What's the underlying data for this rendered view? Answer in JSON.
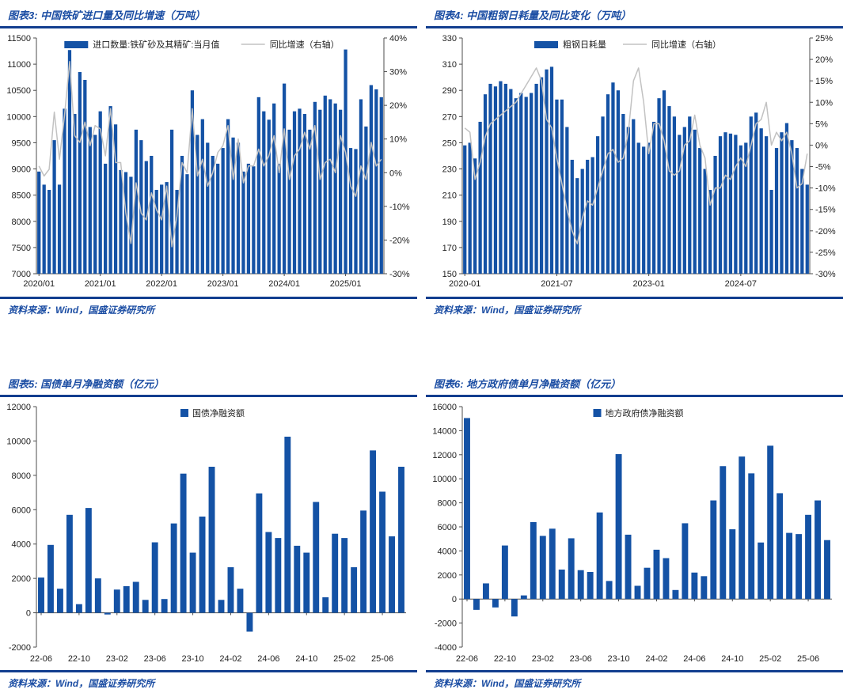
{
  "colors": {
    "bar_blue": "#1452A5",
    "accent_blue": "#1B4DA3",
    "rule_blue": "#123E8F",
    "trend_gray": "#C2C2C2"
  },
  "chart_data": [
    {
      "type": "bar",
      "title": "图表3: 中国铁矿进口量及同比增速（万吨）",
      "source": "资料来源：Wind，国盛证券研究所",
      "legend": [
        {
          "label": "进口数量:铁矿砂及其精矿:当月值",
          "type": "bar",
          "icon": "swatch"
        },
        {
          "label": "同比增速（右轴）",
          "type": "line",
          "icon": "line"
        }
      ],
      "baseline": "min",
      "y_left": {
        "range": [
          7000,
          11500
        ],
        "step": 500
      },
      "y_right": {
        "range": [
          -30,
          40
        ],
        "step": 10,
        "format": "percent"
      },
      "x_ticks": {
        "indices": [
          0,
          12,
          24,
          36,
          48,
          60
        ],
        "labels": [
          "2020/01",
          "2021/01",
          "2022/01",
          "2023/01",
          "2024/01",
          "2025/01"
        ]
      },
      "x_months": [
        "2020-01",
        "2020-02",
        "2020-03",
        "2020-04",
        "2020-05",
        "2020-06",
        "2020-07",
        "2020-08",
        "2020-09",
        "2020-10",
        "2020-11",
        "2020-12",
        "2021-01",
        "2021-02",
        "2021-03",
        "2021-04",
        "2021-05",
        "2021-06",
        "2021-07",
        "2021-08",
        "2021-09",
        "2021-10",
        "2021-11",
        "2021-12",
        "2022-01",
        "2022-02",
        "2022-03",
        "2022-04",
        "2022-05",
        "2022-06",
        "2022-07",
        "2022-08",
        "2022-09",
        "2022-10",
        "2022-11",
        "2022-12",
        "2023-01",
        "2023-02",
        "2023-03",
        "2023-04",
        "2023-05",
        "2023-06",
        "2023-07",
        "2023-08",
        "2023-09",
        "2023-10",
        "2023-11",
        "2023-12",
        "2024-01",
        "2024-02",
        "2024-03",
        "2024-04",
        "2024-05",
        "2024-06",
        "2024-07",
        "2024-08",
        "2024-09",
        "2024-10",
        "2024-11",
        "2024-12",
        "2025-01",
        "2025-02",
        "2025-03",
        "2025-04",
        "2025-05",
        "2025-06",
        "2025-07",
        "2025-08"
      ],
      "series": [
        {
          "name": "进口数量:铁矿砂及其精矿:当月值",
          "type": "bar",
          "axis": "left",
          "values": [
            8950,
            8700,
            8600,
            9550,
            8700,
            10150,
            11270,
            10050,
            10850,
            10700,
            9800,
            9650,
            10100,
            9100,
            10200,
            9850,
            8980,
            8940,
            8850,
            9750,
            9550,
            9150,
            9250,
            8600,
            8700,
            8750,
            9750,
            8600,
            9250,
            8900,
            10500,
            9650,
            9950,
            9500,
            9250,
            9100,
            9400,
            9950,
            9600,
            9500,
            8950,
            9100,
            9050,
            10370,
            10100,
            9940,
            10250,
            9100,
            10630,
            9750,
            10100,
            10150,
            10050,
            9750,
            10280,
            10130,
            10400,
            10330,
            10250,
            10130,
            11280,
            9400,
            9380,
            10330,
            9810,
            10600,
            10520,
            10370
          ]
        },
        {
          "name": "同比增速（右轴）",
          "type": "line",
          "axis": "right",
          "values": [
            2,
            -1,
            1,
            18,
            4,
            17,
            33,
            11,
            9,
            15,
            8,
            14,
            13,
            5,
            19,
            3,
            3,
            -12,
            -21,
            -3,
            -12,
            -14,
            -6,
            -11,
            -14,
            -4,
            -22,
            -13,
            3,
            0,
            19,
            -1,
            4,
            -4,
            0,
            6,
            8,
            14,
            -2,
            10,
            -3,
            2,
            2,
            7,
            2,
            5,
            11,
            0,
            13,
            -2,
            5,
            7,
            12,
            7,
            14,
            -2,
            3,
            4,
            0,
            11,
            6,
            -4,
            -7,
            2,
            -2,
            9,
            2,
            4
          ]
        }
      ]
    },
    {
      "type": "bar",
      "title": "图表4: 中国粗钢日耗量及同比变化（万吨）",
      "source": "资料来源：Wind，国盛证券研究所",
      "legend": [
        {
          "label": "粗钢日耗量",
          "type": "bar",
          "icon": "swatch"
        },
        {
          "label": "同比增速（右轴）",
          "type": "line",
          "icon": "line"
        }
      ],
      "baseline": "min",
      "y_left": {
        "range": [
          150,
          330
        ],
        "step": 20
      },
      "y_right": {
        "range": [
          -30,
          25
        ],
        "step": 5,
        "format": "percent"
      },
      "x_ticks": {
        "indices": [
          0,
          18,
          36,
          54
        ],
        "labels": [
          "2020-01",
          "2021-07",
          "2023-01",
          "2024-07"
        ]
      },
      "x_months": [
        "2020-01",
        "2020-02",
        "2020-03",
        "2020-04",
        "2020-05",
        "2020-06",
        "2020-07",
        "2020-08",
        "2020-09",
        "2020-10",
        "2020-11",
        "2020-12",
        "2021-01",
        "2021-02",
        "2021-03",
        "2021-04",
        "2021-05",
        "2021-06",
        "2021-07",
        "2021-08",
        "2021-09",
        "2021-10",
        "2021-11",
        "2021-12",
        "2022-01",
        "2022-02",
        "2022-03",
        "2022-04",
        "2022-05",
        "2022-06",
        "2022-07",
        "2022-08",
        "2022-09",
        "2022-10",
        "2022-11",
        "2022-12",
        "2023-01",
        "2023-02",
        "2023-03",
        "2023-04",
        "2023-05",
        "2023-06",
        "2023-07",
        "2023-08",
        "2023-09",
        "2023-10",
        "2023-11",
        "2023-12",
        "2024-01",
        "2024-02",
        "2024-03",
        "2024-04",
        "2024-05",
        "2024-06",
        "2024-07",
        "2024-08",
        "2024-09",
        "2024-10",
        "2024-11",
        "2024-12",
        "2025-01",
        "2025-02",
        "2025-03",
        "2025-04",
        "2025-05",
        "2025-06",
        "2025-07",
        "2025-08"
      ],
      "series": [
        {
          "name": "粗钢日耗量",
          "type": "bar",
          "axis": "left",
          "values": [
            248,
            250,
            238,
            266,
            287,
            295,
            293,
            297,
            295,
            291,
            284,
            288,
            285,
            288,
            295,
            300,
            306,
            308,
            283,
            283,
            262,
            237,
            223,
            230,
            237,
            239,
            255,
            270,
            287,
            296,
            290,
            272,
            262,
            268,
            250,
            247,
            250,
            266,
            284,
            290,
            278,
            270,
            256,
            262,
            270,
            260,
            246,
            230,
            214,
            240,
            255,
            258,
            257,
            256,
            248,
            250,
            270,
            273,
            261,
            255,
            214,
            246,
            258,
            265,
            252,
            246,
            230,
            218
          ]
        },
        {
          "name": "同比增速（右轴）",
          "type": "line",
          "axis": "right",
          "values": [
            4,
            3,
            -8,
            -4,
            2,
            5,
            6,
            7,
            8,
            9,
            10,
            12,
            14,
            16,
            18,
            15,
            6,
            4,
            -3,
            -9,
            -15,
            -20,
            -23,
            -17,
            -13,
            -14,
            -10,
            -6,
            -2,
            -1,
            -4,
            -3,
            3,
            15,
            18,
            10,
            -2,
            5,
            5,
            1,
            -6,
            -7,
            -6,
            0,
            1,
            7,
            0,
            -3,
            -14,
            -10,
            -10,
            -7,
            -8,
            -5,
            -3,
            -5,
            0,
            5,
            6,
            10,
            0,
            3,
            1,
            3,
            -2,
            -10,
            -9,
            -2
          ]
        }
      ]
    },
    {
      "type": "bar",
      "title": "图表5: 国债单月净融资额（亿元）",
      "source": "资料来源：Wind，国盛证券研究所",
      "legend": [
        {
          "label": "国债净融资额",
          "type": "bar",
          "icon": "square"
        }
      ],
      "baseline": "zero",
      "y_left": {
        "range": [
          -2000,
          12000
        ],
        "step": 2000
      },
      "x_ticks": {
        "indices": [
          0,
          4,
          8,
          12,
          16,
          20,
          24,
          28,
          32,
          36
        ],
        "labels": [
          "22-06",
          "22-10",
          "23-02",
          "23-06",
          "23-10",
          "24-02",
          "24-06",
          "24-10",
          "25-02",
          "25-06"
        ]
      },
      "x_months": [
        "2022-06",
        "2022-07",
        "2022-08",
        "2022-09",
        "2022-10",
        "2022-11",
        "2022-12",
        "2023-01",
        "2023-02",
        "2023-03",
        "2023-04",
        "2023-05",
        "2023-06",
        "2023-07",
        "2023-08",
        "2023-09",
        "2023-10",
        "2023-11",
        "2023-12",
        "2024-01",
        "2024-02",
        "2024-03",
        "2024-04",
        "2024-05",
        "2024-06",
        "2024-07",
        "2024-08",
        "2024-09",
        "2024-10",
        "2024-11",
        "2024-12",
        "2025-01",
        "2025-02",
        "2025-03",
        "2025-04",
        "2025-05",
        "2025-06",
        "2025-07",
        "2025-08"
      ],
      "series": [
        {
          "name": "国债净融资额",
          "type": "bar",
          "axis": "left",
          "values": [
            2050,
            3950,
            1400,
            5700,
            500,
            6100,
            2000,
            -100,
            1350,
            1550,
            1800,
            750,
            4100,
            800,
            5200,
            8100,
            3500,
            5600,
            8500,
            750,
            2650,
            1400,
            -1100,
            6950,
            4700,
            4350,
            10250,
            3900,
            3500,
            6450,
            900,
            4600,
            4350,
            2650,
            5950,
            9450,
            7050,
            4450,
            8500
          ]
        }
      ]
    },
    {
      "type": "bar",
      "title": "图表6: 地方政府债单月净融资额（亿元）",
      "source": "资料来源：Wind，国盛证券研究所",
      "legend": [
        {
          "label": "地方政府债净融资额",
          "type": "bar",
          "icon": "square"
        }
      ],
      "baseline": "zero",
      "y_left": {
        "range": [
          -4000,
          16000
        ],
        "step": 2000
      },
      "x_ticks": {
        "indices": [
          0,
          4,
          8,
          12,
          16,
          20,
          24,
          28,
          32,
          36
        ],
        "labels": [
          "22-06",
          "22-10",
          "23-02",
          "23-06",
          "23-10",
          "24-02",
          "24-06",
          "24-10",
          "25-02",
          "25-06"
        ]
      },
      "x_months": [
        "2022-06",
        "2022-07",
        "2022-08",
        "2022-09",
        "2022-10",
        "2022-11",
        "2022-12",
        "2023-01",
        "2023-02",
        "2023-03",
        "2023-04",
        "2023-05",
        "2023-06",
        "2023-07",
        "2023-08",
        "2023-09",
        "2023-10",
        "2023-11",
        "2023-12",
        "2024-01",
        "2024-02",
        "2024-03",
        "2024-04",
        "2024-05",
        "2024-06",
        "2024-07",
        "2024-08",
        "2024-09",
        "2024-10",
        "2024-11",
        "2024-12",
        "2025-01",
        "2025-02",
        "2025-03",
        "2025-04",
        "2025-05",
        "2025-06",
        "2025-07",
        "2025-08"
      ],
      "series": [
        {
          "name": "地方政府债净融资额",
          "type": "bar",
          "axis": "left",
          "values": [
            15050,
            -900,
            1300,
            -700,
            4450,
            -1450,
            300,
            6400,
            5250,
            5850,
            2450,
            5050,
            2400,
            2250,
            7200,
            1500,
            12050,
            5350,
            1100,
            2600,
            4100,
            3400,
            750,
            6300,
            2200,
            1900,
            8200,
            11050,
            5800,
            11850,
            10450,
            4700,
            12750,
            8800,
            5500,
            5400,
            7000,
            8200,
            4900
          ]
        }
      ]
    }
  ]
}
